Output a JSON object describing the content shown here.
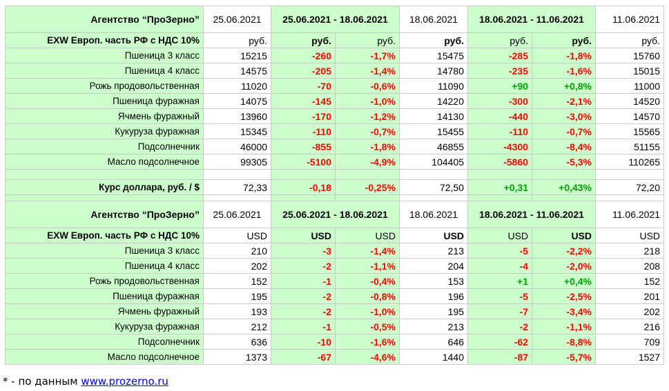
{
  "colors": {
    "highlight_bg": "#ccffcc",
    "negative": "#ff0000",
    "positive": "#00a000",
    "border": "#c9c9c9",
    "link": "#0000ee"
  },
  "rub": {
    "agency": "Агентство “ПроЗерно”",
    "date_a": "25.06.2021",
    "period_1": "25.06.2021 - 18.06.2021",
    "date_b": "18.06.2021",
    "period_2": "18.06.2021 - 11.06.2021",
    "date_c": "11.06.2021",
    "basis": "EXW Европ. часть РФ с НДС 10%",
    "unit": "руб.",
    "rows": [
      {
        "name": "Пшеница 3 класс",
        "v1": "15215",
        "d1": "-260",
        "p1": "-1,7%",
        "v2": "15475",
        "d2": "-285",
        "p2": "-1,8%",
        "v3": "15760"
      },
      {
        "name": "Пшеница 4 класс",
        "v1": "14575",
        "d1": "-205",
        "p1": "-1,4%",
        "v2": "14780",
        "d2": "-235",
        "p2": "-1,6%",
        "v3": "15015"
      },
      {
        "name": "Рожь продовольственная",
        "v1": "11020",
        "d1": "-70",
        "p1": "-0,6%",
        "v2": "11090",
        "d2": "+90",
        "p2": "+0,8%",
        "v3": "11000"
      },
      {
        "name": "Пшеница фуражная",
        "v1": "14075",
        "d1": "-145",
        "p1": "-1,0%",
        "v2": "14220",
        "d2": "-300",
        "p2": "-2,1%",
        "v3": "14520"
      },
      {
        "name": "Ячмень фуражный",
        "v1": "13960",
        "d1": "-170",
        "p1": "-1,2%",
        "v2": "14130",
        "d2": "-440",
        "p2": "-3,0%",
        "v3": "14570"
      },
      {
        "name": "Кукуруза фуражная",
        "v1": "15345",
        "d1": "-110",
        "p1": "-0,7%",
        "v2": "15455",
        "d2": "-110",
        "p2": "-0,7%",
        "v3": "15565"
      },
      {
        "name": "Подсолнечник",
        "v1": "46000",
        "d1": "-855",
        "p1": "-1,8%",
        "v2": "46855",
        "d2": "-4300",
        "p2": "-8,4%",
        "v3": "51155"
      },
      {
        "name": "Масло подсолнечное",
        "v1": "99305",
        "d1": "-5100",
        "p1": "-4,9%",
        "v2": "104405",
        "d2": "-5860",
        "p2": "-5,3%",
        "v3": "110265"
      }
    ],
    "fx": {
      "name": "Курс доллара, руб. / $",
      "v1": "72,33",
      "d1": "-0,18",
      "p1": "-0,25%",
      "v2": "72,50",
      "d2": "+0,31",
      "p2": "+0,43%",
      "v3": "72,20"
    }
  },
  "usd": {
    "agency": "Агентство “ПроЗерно”",
    "date_a": "25.06.2021",
    "period_1": "25.06.2021 - 18.06.2021",
    "date_b": "18.06.2021",
    "period_2": "18.06.2021 - 11.06.2021",
    "date_c": "11.06.2021",
    "basis": "EXW Европ. часть РФ с НДС 10%",
    "unit": "USD",
    "rows": [
      {
        "name": "Пшеница 3 класс",
        "v1": "210",
        "d1": "-3",
        "p1": "-1,4%",
        "v2": "213",
        "d2": "-5",
        "p2": "-2,2%",
        "v3": "218"
      },
      {
        "name": "Пшеница 4 класс",
        "v1": "202",
        "d1": "-2",
        "p1": "-1,1%",
        "v2": "204",
        "d2": "-4",
        "p2": "-2,0%",
        "v3": "208"
      },
      {
        "name": "Рожь продовольственная",
        "v1": "152",
        "d1": "-1",
        "p1": "-0,4%",
        "v2": "153",
        "d2": "+1",
        "p2": "+0,4%",
        "v3": "152"
      },
      {
        "name": "Пшеница фуражная",
        "v1": "195",
        "d1": "-2",
        "p1": "-0,8%",
        "v2": "196",
        "d2": "-5",
        "p2": "-2,5%",
        "v3": "201"
      },
      {
        "name": "Ячмень фуражный",
        "v1": "193",
        "d1": "-2",
        "p1": "-1,0%",
        "v2": "195",
        "d2": "-7",
        "p2": "-3,4%",
        "v3": "202"
      },
      {
        "name": "Кукуруза фуражная",
        "v1": "212",
        "d1": "-1",
        "p1": "-0,5%",
        "v2": "213",
        "d2": "-2",
        "p2": "-1,1%",
        "v3": "216"
      },
      {
        "name": "Подсолнечник",
        "v1": "636",
        "d1": "-10",
        "p1": "-1,6%",
        "v2": "646",
        "d2": "-62",
        "p2": "-8,8%",
        "v3": "709"
      },
      {
        "name": "Масло подсолнечное",
        "v1": "1373",
        "d1": "-67",
        "p1": "-4,6%",
        "v2": "1440",
        "d2": "-87",
        "p2": "-5,7%",
        "v3": "1527"
      }
    ]
  },
  "footnote": {
    "prefix": "* - по данным ",
    "link": "www.prozerno.ru"
  }
}
